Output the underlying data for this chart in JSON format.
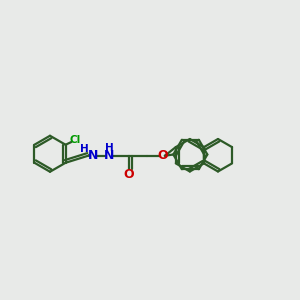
{
  "bg_color": "#e8eae8",
  "bond_color": "#2d5a27",
  "n_color": "#0000cc",
  "o_color": "#cc0000",
  "cl_color": "#009900",
  "line_width": 1.6,
  "fig_width": 3.0,
  "fig_height": 3.0,
  "dpi": 100,
  "xlim": [
    0,
    12
  ],
  "ylim": [
    0,
    10
  ]
}
